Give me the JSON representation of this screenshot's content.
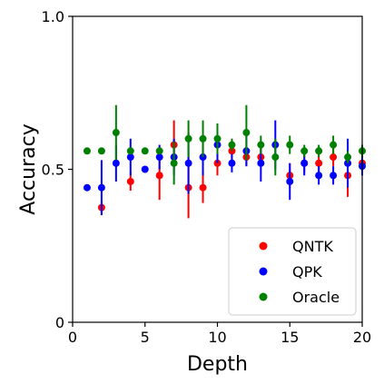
{
  "chart_data": {
    "type": "scatter",
    "xlabel": "Depth",
    "ylabel": "Accuracy",
    "xlim": [
      0,
      20
    ],
    "ylim": [
      0,
      1
    ],
    "x_ticks": [
      0,
      5,
      10,
      15,
      20
    ],
    "x_tick_labels": [
      "0",
      "5",
      "10",
      "15",
      "20"
    ],
    "y_ticks": [
      0,
      0.5,
      1
    ],
    "y_tick_labels": [
      "0",
      "0.5",
      "1.0"
    ],
    "grid": false,
    "legend_position": "bottom-right",
    "series": [
      {
        "name": "QNTK",
        "color": "#ff0000",
        "x": [
          2,
          4,
          6,
          7,
          8,
          9,
          10,
          11,
          12,
          13,
          15,
          16,
          17,
          18,
          19,
          20
        ],
        "y": [
          0.375,
          0.46,
          0.48,
          0.58,
          0.44,
          0.44,
          0.52,
          0.56,
          0.54,
          0.54,
          0.48,
          0.52,
          0.52,
          0.54,
          0.48,
          0.52
        ],
        "err": [
          0.02,
          0.03,
          0.08,
          0.08,
          0.1,
          0.05,
          0.04,
          0.04,
          0.03,
          0.03,
          0.04,
          0.03,
          0.03,
          0.03,
          0.07,
          0.03
        ]
      },
      {
        "name": "QPK",
        "color": "#0000ff",
        "x": [
          1,
          2,
          3,
          4,
          5,
          6,
          7,
          8,
          9,
          10,
          11,
          12,
          13,
          14,
          15,
          16,
          17,
          18,
          19,
          20
        ],
        "y": [
          0.44,
          0.44,
          0.52,
          0.54,
          0.5,
          0.54,
          0.54,
          0.52,
          0.54,
          0.58,
          0.52,
          0.56,
          0.52,
          0.58,
          0.46,
          0.52,
          0.48,
          0.48,
          0.52,
          0.51
        ],
        "err": [
          0,
          0.09,
          0.06,
          0.06,
          0,
          0.04,
          0.06,
          0.1,
          0.06,
          0.06,
          0.03,
          0.05,
          0.06,
          0.08,
          0.06,
          0.04,
          0.03,
          0.03,
          0.08,
          0.03
        ]
      },
      {
        "name": "Oracle",
        "color": "#008000",
        "x": [
          1,
          2,
          3,
          4,
          5,
          6,
          7,
          8,
          9,
          10,
          11,
          12,
          13,
          14,
          15,
          16,
          17,
          18,
          19,
          20
        ],
        "y": [
          0.56,
          0.56,
          0.62,
          0.56,
          0.56,
          0.56,
          0.52,
          0.6,
          0.6,
          0.6,
          0.58,
          0.62,
          0.58,
          0.54,
          0.58,
          0.56,
          0.56,
          0.58,
          0.54,
          0.56
        ],
        "err": [
          0,
          0,
          0.09,
          0,
          0,
          0,
          0.07,
          0.06,
          0.06,
          0.05,
          0.02,
          0.09,
          0.03,
          0.06,
          0.03,
          0.02,
          0.02,
          0.03,
          0.02,
          0.02
        ]
      }
    ]
  }
}
